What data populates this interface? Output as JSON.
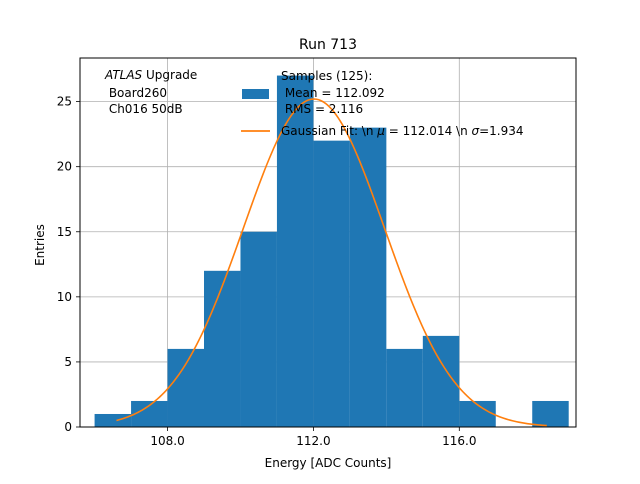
{
  "chart_data": {
    "type": "bar",
    "title": "Run 713",
    "xlabel": "Energy [ADC Counts]",
    "ylabel": "Entries",
    "xlim": [
      105.6,
      119.2
    ],
    "ylim": [
      0,
      28.35
    ],
    "grid": true,
    "x_ticks": [
      108.0,
      112.0,
      116.0
    ],
    "x_tick_labels": [
      "108.0",
      "112.0",
      "116.0"
    ],
    "y_ticks": [
      0,
      5,
      10,
      15,
      20,
      25
    ],
    "y_tick_labels": [
      "0",
      "5",
      "10",
      "15",
      "20",
      "25"
    ],
    "histogram": {
      "bin_edges": [
        106,
        107,
        108,
        109,
        110,
        111,
        112,
        113,
        114,
        115,
        116,
        117,
        118,
        119
      ],
      "counts": [
        1,
        2,
        6,
        12,
        15,
        27,
        22,
        23,
        6,
        7,
        2,
        0,
        2
      ],
      "color": "#1f77b4"
    },
    "fit": {
      "mu": 112.014,
      "sigma": 1.934,
      "amplitude": 25.2,
      "x_range": [
        106.6,
        118.4
      ],
      "color": "#ff7f0e"
    },
    "annotation": {
      "line1_italic": "ATLAS",
      "line1_rest": " Upgrade",
      "line2": " Board260",
      "line3": " Ch016 50dB"
    },
    "legend": {
      "placement": "top-right",
      "hist_label_lines": [
        "Samples (125):",
        " Mean = 112.092",
        " RMS = 2.116"
      ],
      "fit_label_parts": [
        "Gaussian Fit: \\n ",
        "μ",
        " = 112.014 \\n ",
        "σ",
        "=1.934"
      ]
    }
  }
}
